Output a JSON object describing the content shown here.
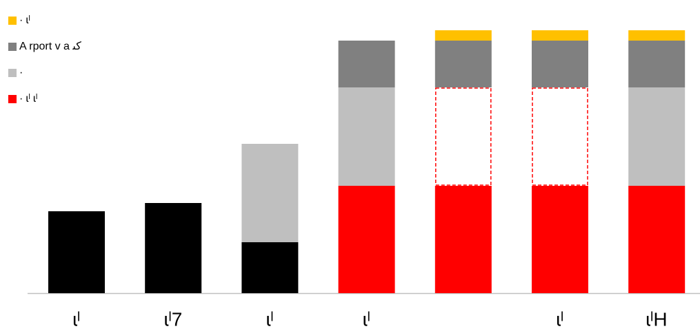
{
  "chart_data": {
    "type": "stacked-bar",
    "categories": [
      "ɩˡ",
      "ɩˡ7",
      "ɩˡ",
      "ɩˡ",
      null,
      "ɩˡ",
      "ɩˡH"
    ],
    "series": [
      {
        "color": "#000000",
        "values": [
          119,
          131,
          74,
          null,
          null,
          null,
          null
        ]
      },
      {
        "name": "· ɩˡ ɩˡ",
        "color": "#ff0000",
        "values": [
          null,
          null,
          null,
          156,
          156,
          156,
          156
        ]
      },
      {
        "name": "·",
        "color": "#bfbfbf",
        "values": [
          null,
          null,
          143,
          143,
          null,
          null,
          143
        ]
      },
      {
        "color": "#ff0000",
        "style": "dashed",
        "values": [
          null,
          null,
          null,
          null,
          143,
          143,
          null
        ]
      },
      {
        "name": "A rport v a ﻛﯩ",
        "color": "#808080",
        "values": [
          null,
          null,
          null,
          68,
          68,
          68,
          68
        ]
      },
      {
        "name": "· ɩˡ",
        "color": "#ffc000",
        "values": [
          null,
          null,
          null,
          null,
          15,
          15,
          15
        ]
      }
    ],
    "ylim": [
      0,
      426
    ]
  }
}
